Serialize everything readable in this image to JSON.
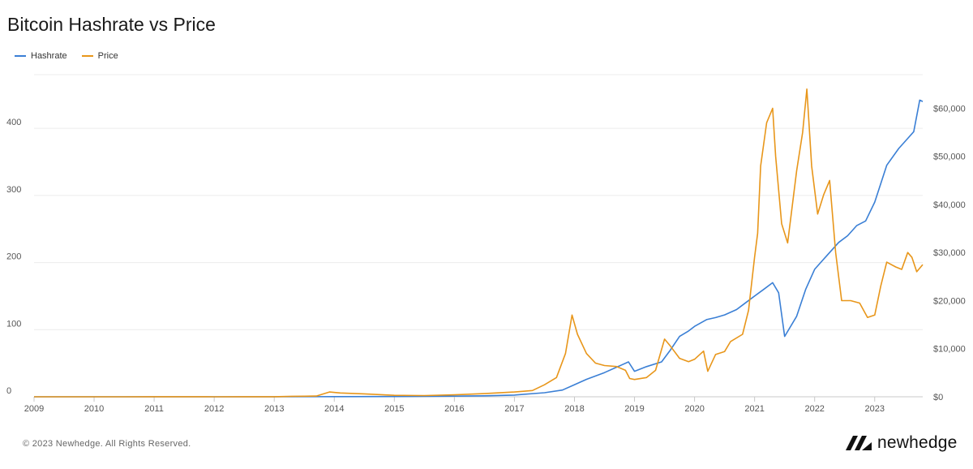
{
  "chart_data": {
    "type": "line",
    "title": "Bitcoin Hashrate vs Price",
    "legend_position": "top-left",
    "grid": "horizontal",
    "x_ticks": [
      "2009",
      "2010",
      "2011",
      "2012",
      "2013",
      "2014",
      "2015",
      "2016",
      "2017",
      "2018",
      "2019",
      "2020",
      "2021",
      "2022",
      "2023"
    ],
    "x_range": [
      2009.0,
      2023.8
    ],
    "y_left": {
      "ticks": [
        0,
        100,
        200,
        300,
        400
      ],
      "range": [
        0,
        480
      ]
    },
    "y_right": {
      "ticks": [
        "$0",
        "$10,000",
        "$20,000",
        "$30,000",
        "$40,000",
        "$50,000",
        "$60,000"
      ],
      "range": [
        0,
        67000
      ]
    },
    "series": [
      {
        "name": "Hashrate",
        "axis": "left",
        "color": "#3a7fd5",
        "points": [
          [
            2009.0,
            0
          ],
          [
            2013.0,
            0
          ],
          [
            2014.0,
            0.2
          ],
          [
            2015.0,
            0.4
          ],
          [
            2016.0,
            1
          ],
          [
            2016.5,
            1.5
          ],
          [
            2017.0,
            2.5
          ],
          [
            2017.5,
            6
          ],
          [
            2017.8,
            10
          ],
          [
            2018.0,
            18
          ],
          [
            2018.2,
            26
          ],
          [
            2018.5,
            36
          ],
          [
            2018.8,
            48
          ],
          [
            2018.9,
            52
          ],
          [
            2019.0,
            38
          ],
          [
            2019.2,
            45
          ],
          [
            2019.45,
            52
          ],
          [
            2019.6,
            70
          ],
          [
            2019.75,
            90
          ],
          [
            2019.9,
            98
          ],
          [
            2020.0,
            105
          ],
          [
            2020.2,
            115
          ],
          [
            2020.35,
            118
          ],
          [
            2020.5,
            122
          ],
          [
            2020.7,
            130
          ],
          [
            2020.85,
            140
          ],
          [
            2021.0,
            150
          ],
          [
            2021.15,
            160
          ],
          [
            2021.3,
            170
          ],
          [
            2021.4,
            155
          ],
          [
            2021.5,
            90
          ],
          [
            2021.7,
            120
          ],
          [
            2021.85,
            160
          ],
          [
            2022.0,
            190
          ],
          [
            2022.2,
            210
          ],
          [
            2022.4,
            230
          ],
          [
            2022.55,
            240
          ],
          [
            2022.7,
            255
          ],
          [
            2022.85,
            262
          ],
          [
            2023.0,
            290
          ],
          [
            2023.2,
            345
          ],
          [
            2023.4,
            370
          ],
          [
            2023.55,
            385
          ],
          [
            2023.65,
            395
          ],
          [
            2023.75,
            442
          ],
          [
            2023.8,
            440
          ]
        ]
      },
      {
        "name": "Price",
        "axis": "right",
        "color": "#e8961a",
        "points": [
          [
            2009.0,
            0
          ],
          [
            2010.5,
            0
          ],
          [
            2011.0,
            20
          ],
          [
            2011.5,
            15
          ],
          [
            2012.0,
            8
          ],
          [
            2012.5,
            10
          ],
          [
            2013.0,
            15
          ],
          [
            2013.3,
            100
          ],
          [
            2013.5,
            110
          ],
          [
            2013.7,
            150
          ],
          [
            2013.92,
            1000
          ],
          [
            2014.1,
            800
          ],
          [
            2014.5,
            600
          ],
          [
            2015.0,
            300
          ],
          [
            2015.5,
            250
          ],
          [
            2016.0,
            400
          ],
          [
            2016.5,
            650
          ],
          [
            2017.0,
            1000
          ],
          [
            2017.3,
            1300
          ],
          [
            2017.5,
            2500
          ],
          [
            2017.7,
            4000
          ],
          [
            2017.85,
            9000
          ],
          [
            2017.96,
            17000
          ],
          [
            2018.05,
            13000
          ],
          [
            2018.2,
            9000
          ],
          [
            2018.35,
            7000
          ],
          [
            2018.5,
            6500
          ],
          [
            2018.7,
            6300
          ],
          [
            2018.85,
            5500
          ],
          [
            2018.92,
            3800
          ],
          [
            2019.0,
            3600
          ],
          [
            2019.2,
            4000
          ],
          [
            2019.35,
            5500
          ],
          [
            2019.5,
            12000
          ],
          [
            2019.6,
            10500
          ],
          [
            2019.75,
            8000
          ],
          [
            2019.9,
            7300
          ],
          [
            2020.0,
            7800
          ],
          [
            2020.15,
            9500
          ],
          [
            2020.22,
            5300
          ],
          [
            2020.35,
            8800
          ],
          [
            2020.5,
            9400
          ],
          [
            2020.6,
            11500
          ],
          [
            2020.8,
            13000
          ],
          [
            2020.9,
            18000
          ],
          [
            2021.0,
            29000
          ],
          [
            2021.05,
            34000
          ],
          [
            2021.1,
            48000
          ],
          [
            2021.2,
            57000
          ],
          [
            2021.3,
            60000
          ],
          [
            2021.35,
            50000
          ],
          [
            2021.45,
            36000
          ],
          [
            2021.55,
            32000
          ],
          [
            2021.7,
            47000
          ],
          [
            2021.8,
            55000
          ],
          [
            2021.87,
            64000
          ],
          [
            2021.95,
            48000
          ],
          [
            2022.05,
            38000
          ],
          [
            2022.15,
            42000
          ],
          [
            2022.25,
            45000
          ],
          [
            2022.35,
            30000
          ],
          [
            2022.45,
            20000
          ],
          [
            2022.6,
            20000
          ],
          [
            2022.75,
            19500
          ],
          [
            2022.88,
            16500
          ],
          [
            2023.0,
            17000
          ],
          [
            2023.1,
            23000
          ],
          [
            2023.2,
            28000
          ],
          [
            2023.35,
            27000
          ],
          [
            2023.45,
            26500
          ],
          [
            2023.55,
            30000
          ],
          [
            2023.62,
            29000
          ],
          [
            2023.7,
            26000
          ],
          [
            2023.8,
            27500
          ]
        ]
      }
    ]
  },
  "footer": {
    "copyright": "© 2023 Newhedge. All Rights Reserved.",
    "brand": "newhedge"
  }
}
